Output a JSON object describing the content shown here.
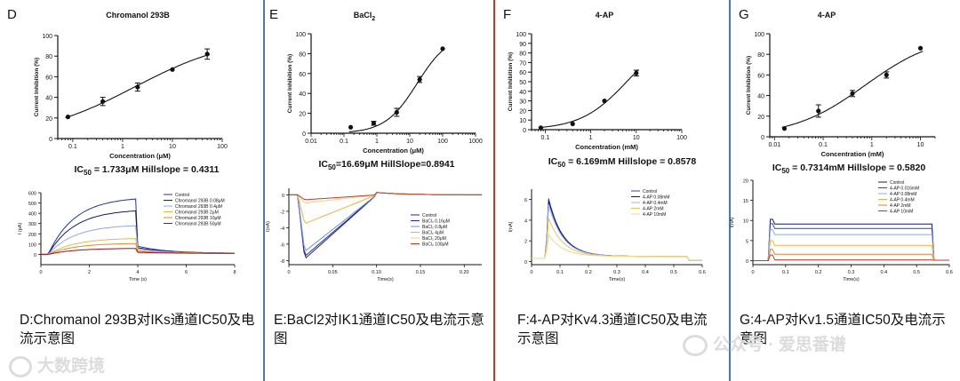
{
  "colors": {
    "divider_blue": "#4b78b8",
    "divider_red": "#c0392b",
    "curve": "#111111"
  },
  "panels": [
    {
      "letter": "D",
      "title": "Chromanol 293B",
      "ic50_text": "IC50 = 1.733μM Hillslope = 0.4311",
      "ic50_pre": "IC",
      "ic50_sub": "50",
      "ic50_post": " = 1.733μM Hillslope = 0.4311",
      "caption_line1": "D:Chromanol 293B对IKs通道IC50及电",
      "caption_line2": "流示意图",
      "chart_data": [
        {
          "type": "scatter",
          "title": "Chromanol 293B",
          "xlabel": "Concentration (μM)",
          "ylabel": "Current Inhibition (%)",
          "xscale": "log",
          "xlim": [
            0.05,
            100
          ],
          "ylim": [
            0,
            100
          ],
          "xticks": [
            0.1,
            1,
            10,
            100
          ],
          "xtick_labels": [
            "0.1",
            "1",
            "10",
            "100"
          ],
          "yticks": [
            0,
            20,
            40,
            60,
            80,
            100
          ],
          "x": [
            0.08,
            0.4,
            2,
            10,
            50
          ],
          "y": [
            21,
            36,
            50,
            67,
            82
          ],
          "yerr": [
            0,
            4,
            4,
            0,
            5
          ],
          "fit": {
            "type": "hill",
            "ic50": 1.733,
            "hillslope": 0.4311,
            "top": 100,
            "bottom": 0
          }
        },
        {
          "type": "line",
          "title": "",
          "xlabel": "Time (s)",
          "ylabel": "I (pA)",
          "xlim": [
            0,
            8
          ],
          "ylim": [
            -100,
            600
          ],
          "xticks": [
            0,
            2,
            4,
            6,
            8
          ],
          "yticks": [
            0,
            100,
            200,
            300,
            400,
            500,
            600
          ],
          "series": [
            {
              "name": "Control",
              "color": "#1f2fbf",
              "plateau": 560,
              "tail": 70
            },
            {
              "name": "Chromanol 293B 0.08μM",
              "color": "#101a70",
              "plateau": 440,
              "tail": 55
            },
            {
              "name": "Chromanol 293B 0.4μM",
              "color": "#8fa8e8",
              "plateau": 290,
              "tail": 45
            },
            {
              "name": "Chromanol 293B 2μM",
              "color": "#e6b84a",
              "plateau": 160,
              "tail": 30
            },
            {
              "name": "Chromanol 293B 10μM",
              "color": "#e08a2a",
              "plateau": 110,
              "tail": 20
            },
            {
              "name": "Chromanol 293B 50μM",
              "color": "#9b1020",
              "plateau": 60,
              "tail": 10
            }
          ]
        }
      ]
    },
    {
      "letter": "E",
      "title": "BaCl2",
      "title_pre": "BaCl",
      "title_sub": "2",
      "ic50_text": "IC50=16.69μM HillSlope=0.8941",
      "ic50_pre": "IC",
      "ic50_sub": "50",
      "ic50_post": "=16.69μM HillSlope=0.8941",
      "caption_line1": "E:BaCl2对IK1通道IC50及电流示意",
      "caption_line2": "图",
      "chart_data": [
        {
          "type": "scatter",
          "title": "BaCl2",
          "xlabel": "Concentration (μM)",
          "ylabel": "Current Inhibition (%)",
          "xscale": "log",
          "xlim": [
            0.01,
            1000
          ],
          "ylim": [
            0,
            100
          ],
          "xticks": [
            0.01,
            0.1,
            1,
            10,
            100,
            1000
          ],
          "xtick_labels": [
            "0.01",
            "0.1",
            "1",
            "10",
            "100",
            "1000"
          ],
          "yticks": [
            0,
            20,
            40,
            60,
            80,
            100
          ],
          "x": [
            0.16,
            0.8,
            4,
            20,
            100
          ],
          "y": [
            6,
            10,
            21,
            54,
            85
          ],
          "yerr": [
            0,
            2,
            4,
            3,
            0
          ],
          "fit": {
            "type": "hill",
            "ic50": 16.69,
            "hillslope": 0.8941,
            "top": 100,
            "bottom": 0
          }
        },
        {
          "type": "line",
          "title": "",
          "xlabel": "Time(s)",
          "ylabel": "I(nA)",
          "xlim": [
            0,
            0.22
          ],
          "ylim": [
            -8.5,
            0.8
          ],
          "xticks": [
            0,
            0.05,
            0.1,
            0.15,
            0.2
          ],
          "xtick_labels": [
            "0",
            "0.05",
            "0.10",
            "0.15",
            "0.20"
          ],
          "yticks": [
            -8,
            -6,
            -4,
            -2,
            0
          ],
          "series": [
            {
              "name": "Control",
              "color": "#2a2a6a",
              "peak": -7.8
            },
            {
              "name": "BaCl₂ 0.16μM",
              "color": "#2030b0",
              "peak": -7.5
            },
            {
              "name": "BaCl₂ 0.8μM",
              "color": "#6f8fe0",
              "peak": -6.9
            },
            {
              "name": "BaCl₂ 4μM",
              "color": "#f0b040",
              "peak": -3.5
            },
            {
              "name": "BaCl₂ 20μM",
              "color": "#f5d27a",
              "peak": -1.0
            },
            {
              "name": "BaCl₂ 100μM",
              "color": "#c0392b",
              "peak": -0.6
            }
          ]
        }
      ]
    },
    {
      "letter": "F",
      "title": "4-AP",
      "ic50_text": "IC50 = 6.169mM Hillslope = 0.8578",
      "ic50_pre": "IC",
      "ic50_sub": "50",
      "ic50_post": " = 6.169mM Hillslope = 0.8578",
      "caption_line1": "F:4-AP对Kv4.3通道IC50及电流",
      "caption_line2": "示意图",
      "chart_data": [
        {
          "type": "scatter",
          "title": "4-AP",
          "xlabel": "Concentration (mM)",
          "ylabel": "Current Inhibition (%)",
          "xscale": "log",
          "xlim": [
            0.05,
            100
          ],
          "ylim": [
            0,
            100
          ],
          "xticks": [
            0.1,
            1,
            10,
            100
          ],
          "xtick_labels": [
            "0.1",
            "1",
            "10",
            "100"
          ],
          "yticks": [
            0,
            10,
            20,
            30,
            40,
            50,
            60,
            70,
            80,
            90,
            100
          ],
          "x": [
            0.08,
            0.4,
            2,
            10
          ],
          "y": [
            2,
            6,
            30,
            59
          ],
          "yerr": [
            0,
            0,
            0,
            3
          ],
          "fit": {
            "type": "hill",
            "ic50": 6.169,
            "hillslope": 0.8578,
            "top": 100,
            "bottom": 0
          }
        },
        {
          "type": "line",
          "title": "",
          "xlabel": "Time(s)",
          "ylabel": "I(nA)",
          "xlim": [
            0,
            0.6
          ],
          "ylim": [
            -0.3,
            7
          ],
          "xticks": [
            0,
            0.1,
            0.2,
            0.3,
            0.4,
            0.5,
            0.6
          ],
          "yticks": [
            0,
            2,
            4,
            6
          ],
          "series": [
            {
              "name": "Control",
              "color": "#3040c0",
              "peak": 6.1
            },
            {
              "name": "4-AP 0.08mM",
              "color": "#101a70",
              "peak": 5.9
            },
            {
              "name": "4-AP 0.4mM",
              "color": "#a0b4ec",
              "peak": 5.5
            },
            {
              "name": "4-AP 2mM",
              "color": "#f0c060",
              "peak": 4.2
            },
            {
              "name": "4-AP 10mM",
              "color": "#f5d68a",
              "peak": 2.6
            }
          ]
        }
      ]
    },
    {
      "letter": "G",
      "title": "4-AP",
      "ic50_text": "IC50 = 0.7314mM Hillslope = 0.5820",
      "ic50_pre": "IC",
      "ic50_sub": "50",
      "ic50_post": " = 0.7314mM Hillslope = 0.5820",
      "caption_line1": "G:4-AP对Kv1.5通道IC50及电流示",
      "caption_line2": "意图",
      "chart_data": [
        {
          "type": "scatter",
          "title": "4-AP",
          "xlabel": "Concentration (mM)",
          "ylabel": "Current Inhibition (%)",
          "xscale": "log",
          "xlim": [
            0.008,
            20
          ],
          "ylim": [
            0,
            100
          ],
          "xticks": [
            0.01,
            0.1,
            1,
            10
          ],
          "xtick_labels": [
            "0.01",
            "0.1",
            "1",
            "10"
          ],
          "yticks": [
            0,
            20,
            40,
            60,
            80,
            100
          ],
          "x": [
            0.016,
            0.08,
            0.4,
            2,
            10
          ],
          "y": [
            8,
            25,
            42,
            60,
            86
          ],
          "yerr": [
            0,
            6,
            3,
            3,
            0
          ],
          "fit": {
            "type": "hill",
            "ic50": 0.7314,
            "hillslope": 0.582,
            "top": 100,
            "bottom": 0
          }
        },
        {
          "type": "line",
          "title": "",
          "xlabel": "Time(s)",
          "ylabel": "I(nA)",
          "xlim": [
            0,
            0.6
          ],
          "ylim": [
            -1,
            20
          ],
          "xticks": [
            0,
            0.1,
            0.2,
            0.3,
            0.4,
            0.5,
            0.6
          ],
          "yticks": [
            0,
            5,
            10,
            15,
            20
          ],
          "series": [
            {
              "name": "Control",
              "color": "#101a70",
              "plateau": 9.1
            },
            {
              "name": "4-AP 0.016mM",
              "color": "#3040c0",
              "plateau": 8.0
            },
            {
              "name": "4-AP 0.08mM",
              "color": "#8fa8e8",
              "plateau": 6.5
            },
            {
              "name": "4-AP 0.4mM",
              "color": "#f0b040",
              "plateau": 3.8
            },
            {
              "name": "4-AP 2mM",
              "color": "#e08030",
              "plateau": 1.6
            },
            {
              "name": "4-AP 10mM",
              "color": "#c0392b",
              "plateau": 0.2
            }
          ]
        }
      ]
    }
  ],
  "watermarks": {
    "left": "大数跨境",
    "right": "公众号 · 爱思番谱"
  },
  "icons": {
    "logo": "link-logo-icon",
    "chat": "wechat-icon"
  }
}
